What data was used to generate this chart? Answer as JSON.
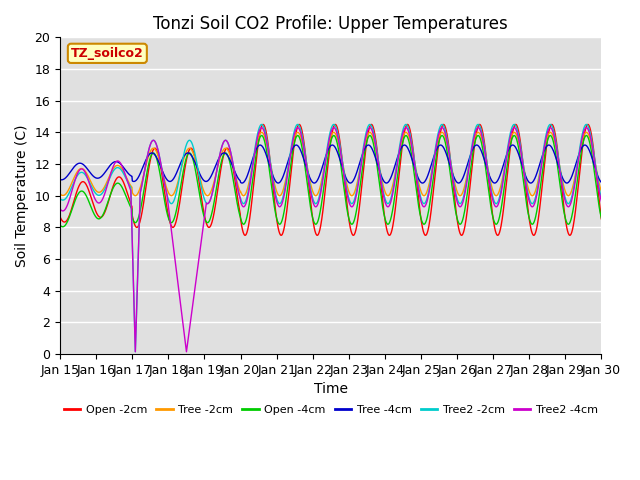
{
  "title": "Tonzi Soil CO2 Profile: Upper Temperatures",
  "xlabel": "Time",
  "ylabel": "Soil Temperature (C)",
  "watermark": "TZ_soilco2",
  "ylim": [
    0,
    20
  ],
  "xlim": [
    0,
    360
  ],
  "x_tick_labels": [
    "Jan 15",
    "Jan 16",
    "Jan 17",
    "Jan 18",
    "Jan 19",
    "Jan 20",
    "Jan 21",
    "Jan 22",
    "Jan 23",
    "Jan 24",
    "Jan 25",
    "Jan 26",
    "Jan 27",
    "Jan 28",
    "Jan 29",
    "Jan 30"
  ],
  "x_tick_positions": [
    0,
    24,
    48,
    72,
    96,
    120,
    144,
    168,
    192,
    216,
    240,
    264,
    288,
    312,
    336,
    360
  ],
  "series": [
    {
      "label": "Open -2cm",
      "color": "#ff0000"
    },
    {
      "label": "Tree -2cm",
      "color": "#ff9900"
    },
    {
      "label": "Open -4cm",
      "color": "#00cc00"
    },
    {
      "label": "Tree -4cm",
      "color": "#0000cc"
    },
    {
      "label": "Tree2 -2cm",
      "color": "#00cccc"
    },
    {
      "label": "Tree2 -4cm",
      "color": "#cc00cc"
    }
  ],
  "background_color": "#e0e0e0",
  "grid_color": "#ffffff",
  "title_fontsize": 12,
  "axis_fontsize": 10,
  "tick_fontsize": 9
}
